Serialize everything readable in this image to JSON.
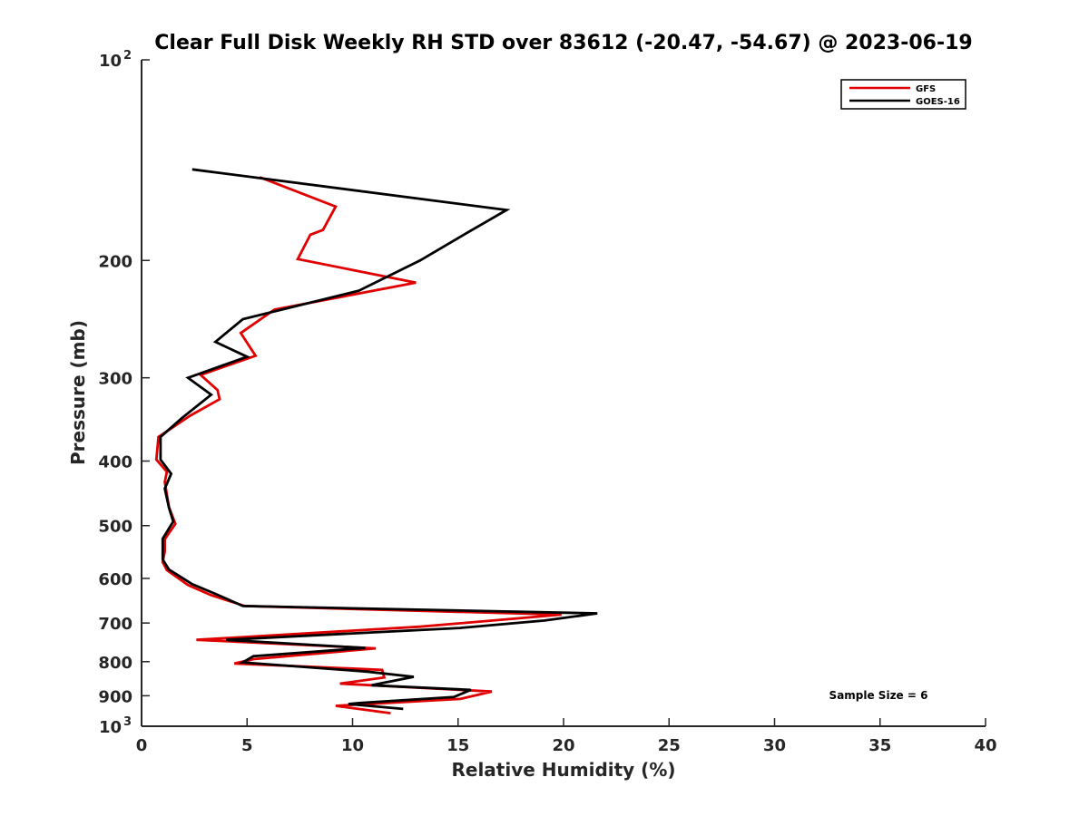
{
  "chart_data": {
    "type": "line",
    "title": "Clear Full Disk Weekly RH STD over 83612 (-20.47, -54.67) @ 2023-06-19",
    "xlabel": "Relative Humidity (%)",
    "ylabel": "Pressure (mb)",
    "xlim": [
      0,
      40
    ],
    "ylim": [
      100,
      1000
    ],
    "y_scale": "log",
    "y_reversed": true,
    "grid": false,
    "legend_position": "top-right",
    "x_ticks": [
      "0",
      "5",
      "10",
      "15",
      "20",
      "25",
      "30",
      "35",
      "40"
    ],
    "y_ticks": [
      {
        "value": 100,
        "label": "10",
        "sup": "2"
      },
      {
        "value": 200,
        "label": "200",
        "sup": ""
      },
      {
        "value": 300,
        "label": "300",
        "sup": ""
      },
      {
        "value": 400,
        "label": "400",
        "sup": ""
      },
      {
        "value": 500,
        "label": "500",
        "sup": ""
      },
      {
        "value": 600,
        "label": "600",
        "sup": ""
      },
      {
        "value": 700,
        "label": "700",
        "sup": ""
      },
      {
        "value": 800,
        "label": "800",
        "sup": ""
      },
      {
        "value": 900,
        "label": "900",
        "sup": ""
      },
      {
        "value": 1000,
        "label": "10",
        "sup": "3"
      }
    ],
    "annotation": "Sample Size = 6",
    "series": [
      {
        "name": "GFS",
        "color": "#e00000",
        "points": [
          [
            5.6,
            150
          ],
          [
            9.2,
            166
          ],
          [
            8.6,
            180
          ],
          [
            8.0,
            183
          ],
          [
            7.4,
            199
          ],
          [
            13.0,
            216
          ],
          [
            6.3,
            237
          ],
          [
            4.7,
            257
          ],
          [
            5.4,
            278
          ],
          [
            2.8,
            297
          ],
          [
            3.6,
            313
          ],
          [
            3.7,
            323
          ],
          [
            2.3,
            342
          ],
          [
            0.8,
            368
          ],
          [
            0.7,
            398
          ],
          [
            1.2,
            415
          ],
          [
            1.1,
            430
          ],
          [
            1.3,
            469
          ],
          [
            1.6,
            497
          ],
          [
            1.1,
            524
          ],
          [
            1.1,
            547
          ],
          [
            1.0,
            567
          ],
          [
            1.2,
            583
          ],
          [
            2.2,
            614
          ],
          [
            3.3,
            636
          ],
          [
            4.9,
            660
          ],
          [
            19.9,
            680
          ],
          [
            13.2,
            709
          ],
          [
            2.6,
            742
          ],
          [
            11.1,
            764
          ],
          [
            5.3,
            793
          ],
          [
            4.4,
            805
          ],
          [
            11.4,
            823
          ],
          [
            11.5,
            845
          ],
          [
            9.4,
            863
          ],
          [
            16.6,
            887
          ],
          [
            15.1,
            910
          ],
          [
            9.2,
            932
          ],
          [
            11.8,
            956
          ]
        ]
      },
      {
        "name": "GOES-16",
        "color": "#000000",
        "points": [
          [
            2.4,
            146
          ],
          [
            17.3,
            168
          ],
          [
            15.4,
            182
          ],
          [
            13.2,
            200
          ],
          [
            10.3,
            222
          ],
          [
            4.8,
            245
          ],
          [
            3.5,
            265
          ],
          [
            5.0,
            279
          ],
          [
            2.2,
            300
          ],
          [
            3.3,
            318
          ],
          [
            1.9,
            345
          ],
          [
            0.9,
            368
          ],
          [
            0.9,
            398
          ],
          [
            1.4,
            418
          ],
          [
            1.1,
            440
          ],
          [
            1.3,
            470
          ],
          [
            1.5,
            493
          ],
          [
            1.0,
            523
          ],
          [
            1.0,
            562
          ],
          [
            1.3,
            582
          ],
          [
            2.4,
            612
          ],
          [
            3.5,
            633
          ],
          [
            4.8,
            660
          ],
          [
            21.6,
            677
          ],
          [
            19.1,
            694
          ],
          [
            15.1,
            712
          ],
          [
            4.0,
            742
          ],
          [
            10.6,
            763
          ],
          [
            5.3,
            785
          ],
          [
            4.8,
            802
          ],
          [
            10.7,
            828
          ],
          [
            12.9,
            843
          ],
          [
            10.9,
            868
          ],
          [
            15.6,
            882
          ],
          [
            14.8,
            904
          ],
          [
            10.3,
            923
          ],
          [
            9.8,
            926
          ],
          [
            12.4,
            942
          ]
        ]
      }
    ]
  }
}
